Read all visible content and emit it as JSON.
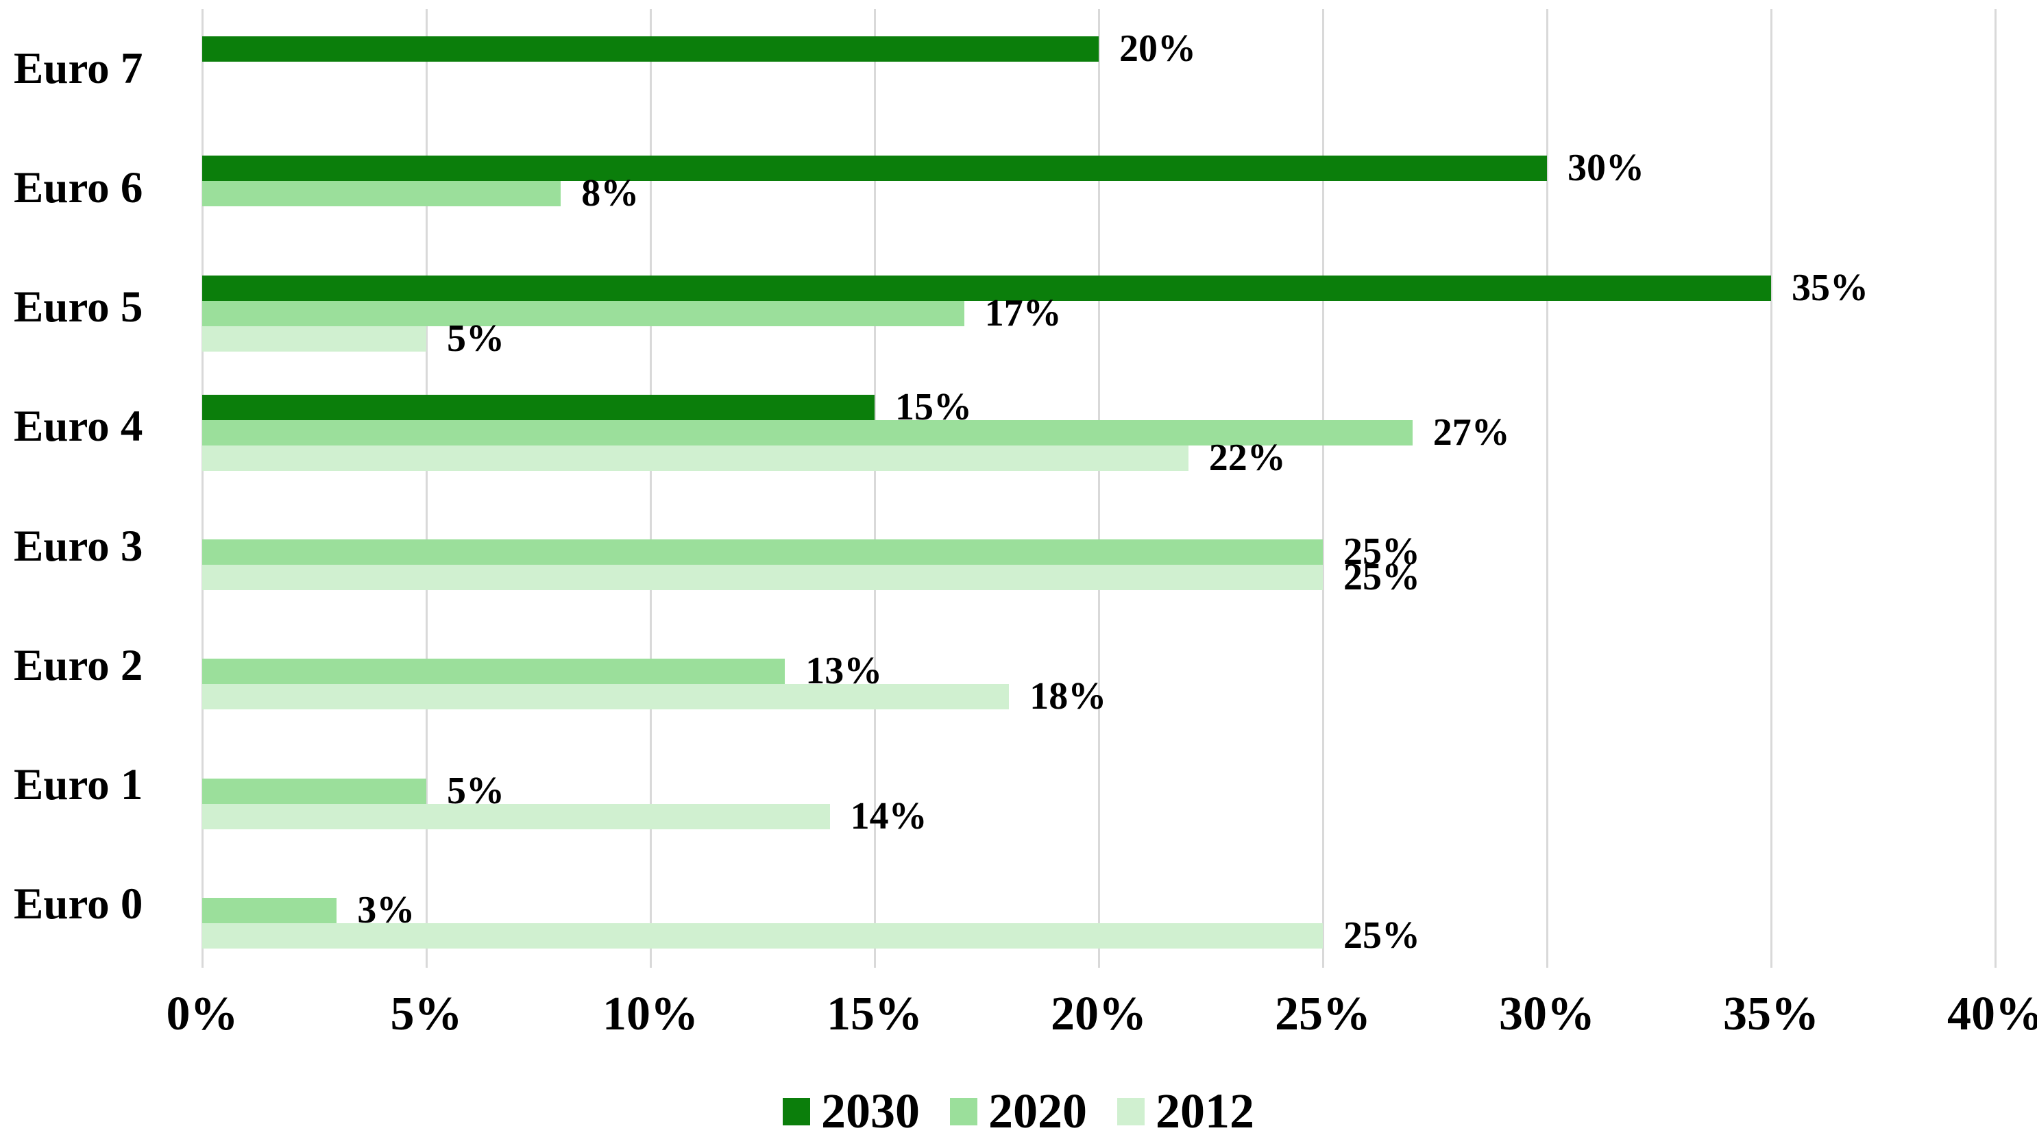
{
  "chart_data": {
    "type": "bar",
    "orientation": "horizontal",
    "title": "",
    "xlabel": "",
    "ylabel": "",
    "unit": "%",
    "categories": [
      "Euro 7",
      "Euro 6",
      "Euro 5",
      "Euro 4",
      "Euro 3",
      "Euro 2",
      "Euro 1",
      "Euro 0"
    ],
    "series": [
      {
        "name": "2030",
        "color": "#0b7e0b",
        "values": [
          20,
          30,
          35,
          15,
          null,
          null,
          null,
          null
        ]
      },
      {
        "name": "2020",
        "color": "#9bdf9b",
        "values": [
          null,
          8,
          17,
          27,
          25,
          13,
          5,
          3
        ]
      },
      {
        "name": "2012",
        "color": "#d0f0d0",
        "values": [
          null,
          null,
          5,
          22,
          25,
          18,
          14,
          25
        ]
      }
    ],
    "data_labels": {
      "2030": [
        "20%",
        "30%",
        "35%",
        "15%",
        null,
        null,
        null,
        null
      ],
      "2020": [
        null,
        "8%",
        "17%",
        "27%",
        "25%",
        "13%",
        "5%",
        "3%"
      ],
      "2012": [
        null,
        null,
        "5%",
        "22%",
        "25%",
        "18%",
        "14%",
        "25%"
      ]
    },
    "x_ticks": [
      "0%",
      "5%",
      "10%",
      "15%",
      "20%",
      "25%",
      "30%",
      "35%",
      "40%"
    ],
    "xlim": [
      0,
      40
    ],
    "x_tick_step": 5,
    "grid": "vertical",
    "gridline_color": "#d9d9d9",
    "text_color": "#000000",
    "background_color": "#ffffff",
    "legend_position": "bottom",
    "legend": [
      "2030",
      "2020",
      "2012"
    ]
  }
}
